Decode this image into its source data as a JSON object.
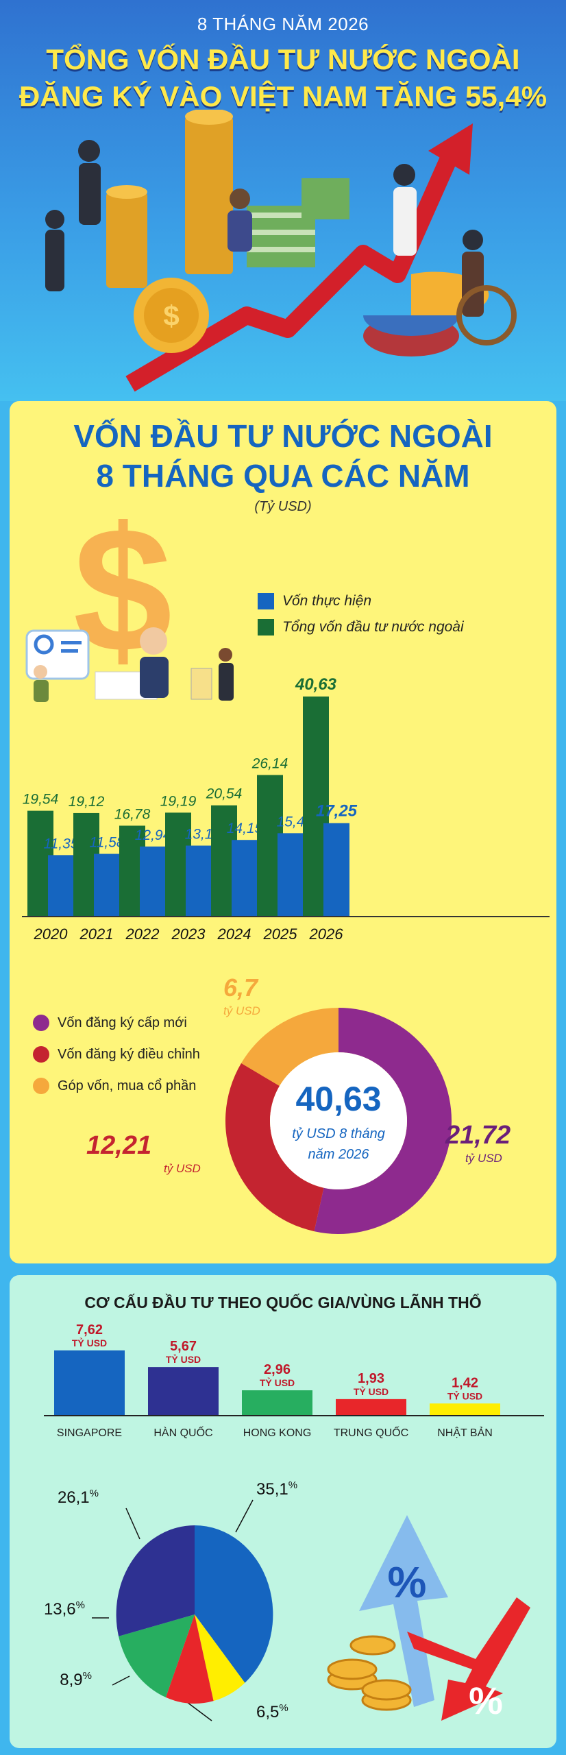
{
  "hero": {
    "date": "8 THÁNG NĂM 2026",
    "title_line1": "TỔNG VỐN ĐẦU TƯ NƯỚC NGOÀI",
    "title_line2": "ĐĂNG KÝ VÀO VIỆT NAM TĂNG 55,4%"
  },
  "panel1": {
    "title_line1": "VỐN ĐẦU TƯ NƯỚC NGOÀI",
    "title_line2": "8 THÁNG QUA CÁC NĂM",
    "unit": "(Tỷ USD)",
    "legend": [
      "Vốn thực hiện",
      "Tổng vốn đầu tư nước ngoài"
    ]
  },
  "chart_data": [
    {
      "type": "bar",
      "categories": [
        "2020",
        "2021",
        "2022",
        "2023",
        "2024",
        "2025",
        "2026"
      ],
      "series": [
        {
          "name": "Tổng vốn đầu tư nước ngoài",
          "color": "#1a6e35",
          "values": [
            19.54,
            19.12,
            16.78,
            19.19,
            20.54,
            26.14,
            40.63
          ],
          "labels": [
            "19,54",
            "19,12",
            "16,78",
            "19,19",
            "20,54",
            "26,14",
            "40,63"
          ]
        },
        {
          "name": "Vốn thực hiện",
          "color": "#1565c0",
          "values": [
            11.35,
            11.58,
            12.94,
            13.1,
            14.15,
            15.4,
            17.25
          ],
          "labels": [
            "11,35",
            "11,58",
            "12,94",
            "13,1",
            "14,15",
            "15,4",
            "17,25"
          ]
        }
      ],
      "ylim": [
        0,
        42
      ]
    },
    {
      "type": "pie",
      "center_value": "40,63",
      "center_text_line1": "tỷ USD 8 tháng",
      "center_text_line2": "năm 2026",
      "slices": [
        {
          "name": "Vốn đăng ký cấp mới",
          "value": 21.72,
          "label": "21,72",
          "unit": "tỷ USD",
          "color": "#8e2a8e"
        },
        {
          "name": "Vốn đăng ký điều chỉnh",
          "value": 12.21,
          "label": "12,21",
          "unit": "tỷ USD",
          "color": "#c42430"
        },
        {
          "name": "Góp vốn, mua cổ phần",
          "value": 6.7,
          "label": "6,7",
          "unit": "tỷ USD",
          "color": "#f5a83c"
        }
      ]
    },
    {
      "type": "bar",
      "title": "CƠ CẤU ĐẦU TƯ THEO QUỐC GIA/VÙNG LÃNH THỔ",
      "categories": [
        "SINGAPORE",
        "HÀN QUỐC",
        "HONG KONG",
        "TRUNG QUỐC",
        "NHẬT BẢN"
      ],
      "values": [
        7.62,
        5.67,
        2.96,
        1.93,
        1.42
      ],
      "labels": [
        "7,62",
        "5,67",
        "2,96",
        "1,93",
        "1,42"
      ],
      "unit": "TỶ USD",
      "colors": [
        "#1565c0",
        "#2e3192",
        "#27ae60",
        "#e8262a",
        "#ffee00"
      ]
    },
    {
      "type": "pie",
      "slices": [
        {
          "value": 35.1,
          "label": "35,1",
          "color": "#1565c0"
        },
        {
          "value": 6.5,
          "label": "6,5",
          "color": "#ffee00"
        },
        {
          "value": 8.9,
          "label": "8,9",
          "color": "#e8262a"
        },
        {
          "value": 13.6,
          "label": "13,6",
          "color": "#27ae60"
        },
        {
          "value": 26.1,
          "label": "26,1",
          "color": "#2e3192"
        }
      ],
      "pct_symbol": "%"
    }
  ]
}
